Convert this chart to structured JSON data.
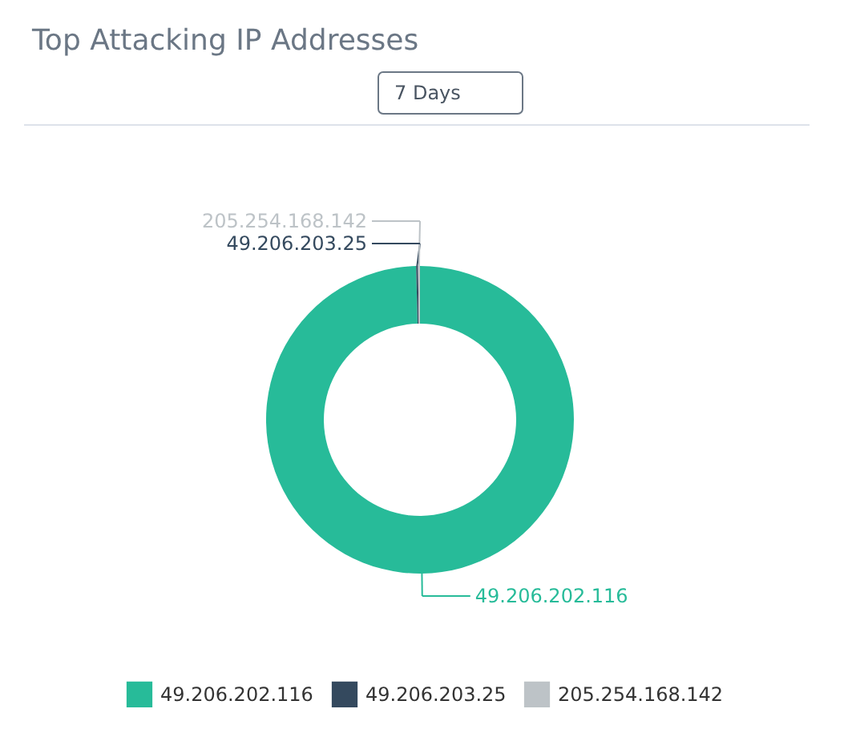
{
  "chart_data": {
    "type": "donut",
    "title": "Top Attacking IP Addresses",
    "annotations": [
      "7 Days"
    ],
    "categories": [
      "49.206.202.116",
      "49.206.203.25",
      "205.254.168.142"
    ],
    "values": [
      99.6,
      0.2,
      0.2
    ],
    "colors": [
      "#27bb99",
      "#34495e",
      "#bdc3c7"
    ],
    "legend": "bottom"
  }
}
